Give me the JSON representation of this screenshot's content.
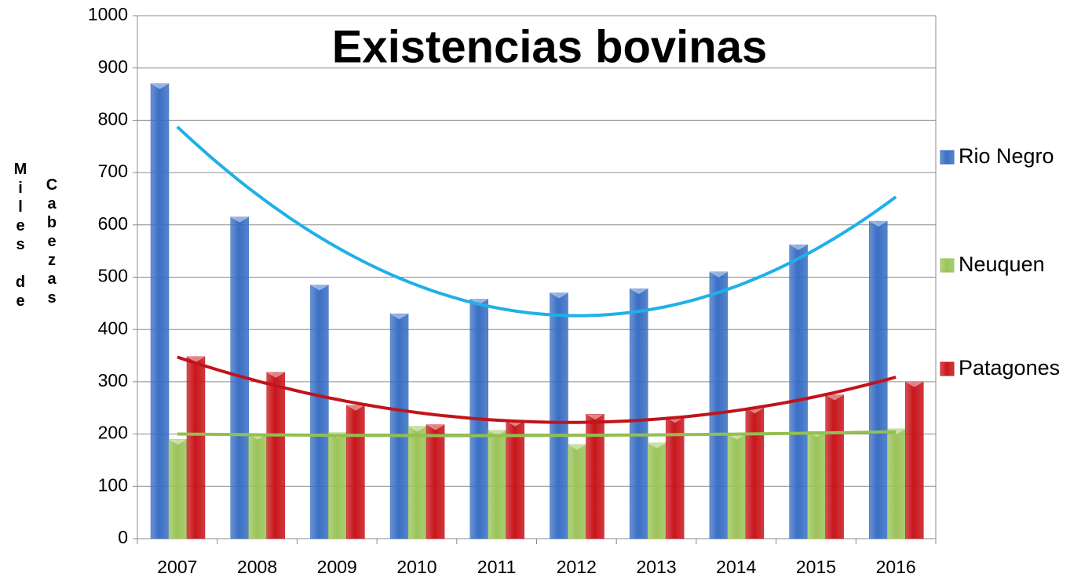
{
  "chart_data": {
    "type": "bar",
    "title": "Existencias bovinas",
    "ylabel_lines": [
      "Miles de",
      "Cabezas"
    ],
    "categories": [
      "2007",
      "2008",
      "2009",
      "2010",
      "2011",
      "2012",
      "2013",
      "2014",
      "2015",
      "2016"
    ],
    "series": [
      {
        "name": "Rio Negro",
        "color": "#3a6fc4",
        "trend_color": "#1fb0e8",
        "values": [
          870,
          615,
          485,
          430,
          458,
          470,
          478,
          510,
          562,
          607
        ]
      },
      {
        "name": "Neuquen",
        "color": "#9bc45a",
        "trend_color": "#92c050",
        "values": [
          190,
          200,
          203,
          215,
          207,
          180,
          183,
          200,
          205,
          210
        ]
      },
      {
        "name": "Patagones",
        "color": "#c8161c",
        "trend_color": "#c0141a",
        "values": [
          348,
          318,
          255,
          218,
          225,
          238,
          232,
          250,
          275,
          300
        ]
      }
    ],
    "trendline": "polynomial",
    "ylim": [
      0,
      1000
    ],
    "yticks": [
      0,
      100,
      200,
      300,
      400,
      500,
      600,
      700,
      800,
      900,
      1000
    ],
    "grid": true,
    "legend": "right"
  }
}
